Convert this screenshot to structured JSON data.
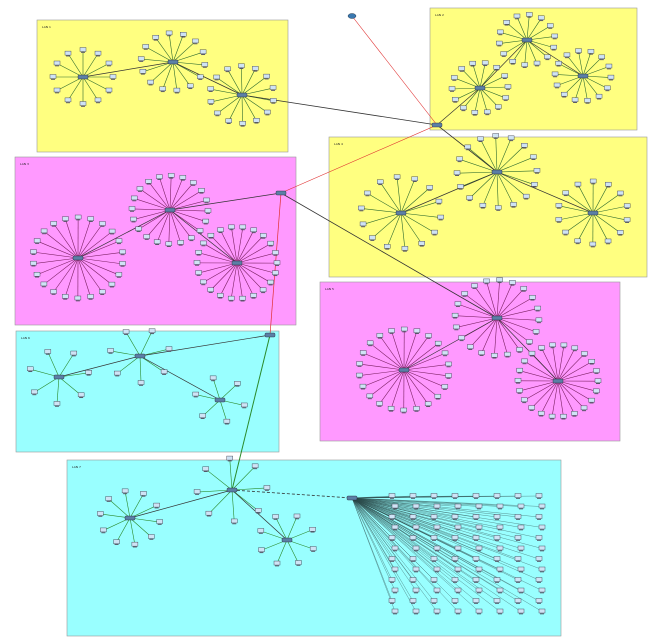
{
  "diagram": {
    "zones": [
      {
        "label": "LAN 1"
      },
      {
        "label": "LAN 2"
      },
      {
        "label": "LAN 3"
      },
      {
        "label": "LAN 4"
      },
      {
        "label": "LAN 5"
      },
      {
        "label": "LAN 6"
      },
      {
        "label": "LAN 7"
      }
    ]
  }
}
